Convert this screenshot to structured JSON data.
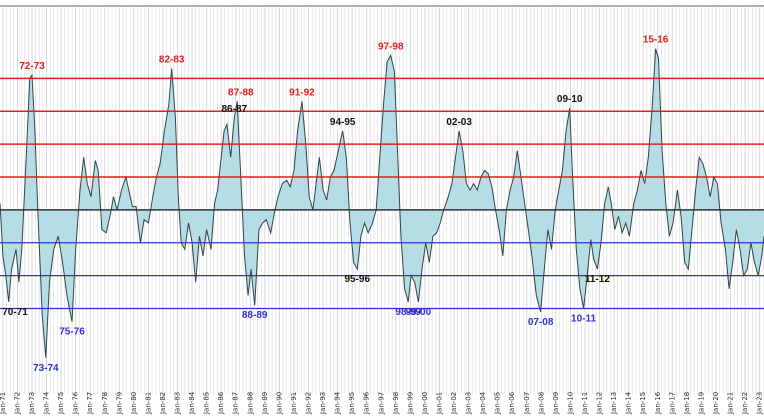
{
  "chart_data": {
    "type": "area",
    "title": "",
    "xlabel": "",
    "ylabel": "",
    "x_ticks": [
      "Jan-71",
      "Jan-72",
      "Jan-73",
      "Jan-74",
      "Jan-75",
      "Jan-76",
      "Jan-77",
      "Jan-78",
      "Jan-79",
      "Jan-80",
      "Jan-81",
      "Jan-82",
      "Jan-83",
      "Jan-84",
      "Jan-85",
      "Jan-86",
      "Jan-87",
      "Jan-88",
      "Jan-89",
      "Jan-90",
      "Jan-91",
      "Jan-92",
      "Jan-93",
      "Jan-94",
      "Jan-95",
      "Jan-96",
      "Jan-97",
      "Jan-98",
      "Jan-99",
      "Jan-00",
      "Jan-01",
      "Jan-02",
      "Jan-03",
      "Jan-04",
      "Jan-05",
      "Jan-06",
      "Jan-07",
      "Jan-08",
      "Jan-09",
      "Jan-10",
      "Jan-11",
      "Jan-12",
      "Jan-13",
      "Jan-14",
      "Jan-15",
      "Jan-16",
      "Jan-17",
      "Jan-18",
      "Jan-19",
      "Jan-20",
      "Jan-21",
      "Jan-22",
      "Jan-23"
    ],
    "xlim": [
      1970.8,
      2023.3
    ],
    "ylim": [
      -2.8,
      3.1
    ],
    "grid": "vertical",
    "baseline": 0,
    "thresholds": {
      "positive": [
        0.5,
        1.0,
        1.5,
        2.0
      ],
      "negative": [
        -0.5,
        -1.0,
        -1.5
      ],
      "positive_color": "#e0201a",
      "negative_color": "#3030d8"
    },
    "colors": {
      "fill": "#b5dde6",
      "line": "#33444a",
      "zero_line": "#333333",
      "grid": "#d4d4d4"
    },
    "series": [
      {
        "points": [
          [
            1970.8,
            0.1
          ],
          [
            1971.0,
            -0.7
          ],
          [
            1971.2,
            -1.0
          ],
          [
            1971.4,
            -1.4
          ],
          [
            1971.6,
            -0.9
          ],
          [
            1971.9,
            -0.6
          ],
          [
            1972.1,
            -1.1
          ],
          [
            1972.3,
            -0.6
          ],
          [
            1972.6,
            0.8
          ],
          [
            1972.85,
            2.0
          ],
          [
            1973.0,
            2.05
          ],
          [
            1973.2,
            1.2
          ],
          [
            1973.4,
            0.0
          ],
          [
            1973.7,
            -1.6
          ],
          [
            1973.95,
            -2.25
          ],
          [
            1974.2,
            -1.1
          ],
          [
            1974.5,
            -0.6
          ],
          [
            1974.8,
            -0.4
          ],
          [
            1975.1,
            -0.8
          ],
          [
            1975.4,
            -1.3
          ],
          [
            1975.75,
            -1.7
          ],
          [
            1976.0,
            -0.6
          ],
          [
            1976.3,
            0.3
          ],
          [
            1976.55,
            0.8
          ],
          [
            1976.8,
            0.4
          ],
          [
            1977.05,
            0.2
          ],
          [
            1977.35,
            0.75
          ],
          [
            1977.55,
            0.6
          ],
          [
            1977.8,
            -0.3
          ],
          [
            1978.1,
            -0.35
          ],
          [
            1978.4,
            -0.05
          ],
          [
            1978.6,
            0.2
          ],
          [
            1978.85,
            0.0
          ],
          [
            1979.15,
            0.3
          ],
          [
            1979.45,
            0.5
          ],
          [
            1979.65,
            0.3
          ],
          [
            1979.9,
            0.05
          ],
          [
            1980.15,
            0.05
          ],
          [
            1980.45,
            -0.5
          ],
          [
            1980.7,
            -0.15
          ],
          [
            1981.0,
            -0.2
          ],
          [
            1981.3,
            0.2
          ],
          [
            1981.55,
            0.5
          ],
          [
            1981.8,
            0.7
          ],
          [
            1982.1,
            1.2
          ],
          [
            1982.4,
            1.6
          ],
          [
            1982.6,
            2.15
          ],
          [
            1982.85,
            1.4
          ],
          [
            1983.05,
            0.2
          ],
          [
            1983.25,
            -0.5
          ],
          [
            1983.5,
            -0.6
          ],
          [
            1983.75,
            -0.2
          ],
          [
            1984.0,
            -0.5
          ],
          [
            1984.25,
            -1.1
          ],
          [
            1984.5,
            -0.4
          ],
          [
            1984.75,
            -0.7
          ],
          [
            1985.0,
            -0.3
          ],
          [
            1985.3,
            -0.6
          ],
          [
            1985.55,
            0.1
          ],
          [
            1985.75,
            0.3
          ],
          [
            1986.0,
            0.8
          ],
          [
            1986.2,
            1.2
          ],
          [
            1986.4,
            1.3
          ],
          [
            1986.65,
            0.8
          ],
          [
            1986.9,
            1.4
          ],
          [
            1987.1,
            1.65
          ],
          [
            1987.35,
            0.5
          ],
          [
            1987.6,
            -0.7
          ],
          [
            1987.85,
            -1.3
          ],
          [
            1988.05,
            -0.9
          ],
          [
            1988.3,
            -1.45
          ],
          [
            1988.6,
            -0.3
          ],
          [
            1988.85,
            -0.2
          ],
          [
            1989.1,
            -0.15
          ],
          [
            1989.4,
            -0.35
          ],
          [
            1989.7,
            0.0
          ],
          [
            1989.9,
            0.2
          ],
          [
            1990.2,
            0.4
          ],
          [
            1990.5,
            0.45
          ],
          [
            1990.75,
            0.35
          ],
          [
            1991.0,
            0.6
          ],
          [
            1991.25,
            1.2
          ],
          [
            1991.55,
            1.65
          ],
          [
            1991.85,
            0.9
          ],
          [
            1992.05,
            0.2
          ],
          [
            1992.3,
            0.0
          ],
          [
            1992.55,
            0.45
          ],
          [
            1992.75,
            0.8
          ],
          [
            1993.0,
            0.3
          ],
          [
            1993.25,
            0.15
          ],
          [
            1993.5,
            0.5
          ],
          [
            1993.75,
            0.6
          ],
          [
            1994.05,
            0.9
          ],
          [
            1994.35,
            1.2
          ],
          [
            1994.6,
            0.8
          ],
          [
            1994.85,
            -0.2
          ],
          [
            1995.1,
            -0.8
          ],
          [
            1995.35,
            -0.9
          ],
          [
            1995.6,
            -0.4
          ],
          [
            1995.85,
            -0.2
          ],
          [
            1996.1,
            -0.35
          ],
          [
            1996.4,
            -0.2
          ],
          [
            1996.65,
            0.0
          ],
          [
            1996.9,
            0.8
          ],
          [
            1997.15,
            1.6
          ],
          [
            1997.4,
            2.25
          ],
          [
            1997.65,
            2.35
          ],
          [
            1997.9,
            2.1
          ],
          [
            1998.1,
            1.0
          ],
          [
            1998.35,
            -0.4
          ],
          [
            1998.6,
            -1.2
          ],
          [
            1998.85,
            -1.4
          ],
          [
            1999.05,
            -1.0
          ],
          [
            1999.3,
            -1.1
          ],
          [
            1999.55,
            -1.4
          ],
          [
            1999.8,
            -0.9
          ],
          [
            2000.05,
            -0.5
          ],
          [
            2000.3,
            -0.8
          ],
          [
            2000.55,
            -0.4
          ],
          [
            2000.8,
            -0.35
          ],
          [
            2001.05,
            -0.2
          ],
          [
            2001.3,
            0.0
          ],
          [
            2001.6,
            0.2
          ],
          [
            2001.85,
            0.4
          ],
          [
            2002.1,
            0.8
          ],
          [
            2002.35,
            1.2
          ],
          [
            2002.6,
            0.9
          ],
          [
            2002.85,
            0.4
          ],
          [
            2003.1,
            0.3
          ],
          [
            2003.35,
            0.4
          ],
          [
            2003.6,
            0.3
          ],
          [
            2003.85,
            0.5
          ],
          [
            2004.1,
            0.6
          ],
          [
            2004.35,
            0.55
          ],
          [
            2004.6,
            0.35
          ],
          [
            2004.85,
            0.0
          ],
          [
            2005.1,
            -0.3
          ],
          [
            2005.35,
            -0.7
          ],
          [
            2005.6,
            0.0
          ],
          [
            2005.85,
            0.3
          ],
          [
            2006.1,
            0.5
          ],
          [
            2006.35,
            0.9
          ],
          [
            2006.6,
            0.5
          ],
          [
            2006.85,
            0.1
          ],
          [
            2007.1,
            -0.3
          ],
          [
            2007.35,
            -0.7
          ],
          [
            2007.65,
            -1.3
          ],
          [
            2007.95,
            -1.55
          ],
          [
            2008.2,
            -0.9
          ],
          [
            2008.45,
            -0.3
          ],
          [
            2008.7,
            -0.6
          ],
          [
            2008.95,
            0.0
          ],
          [
            2009.2,
            0.3
          ],
          [
            2009.45,
            0.6
          ],
          [
            2009.7,
            1.2
          ],
          [
            2009.95,
            1.55
          ],
          [
            2010.15,
            0.5
          ],
          [
            2010.4,
            -0.6
          ],
          [
            2010.65,
            -1.2
          ],
          [
            2010.9,
            -1.5
          ],
          [
            2011.15,
            -1.0
          ],
          [
            2011.4,
            -0.45
          ],
          [
            2011.6,
            -0.75
          ],
          [
            2011.85,
            -0.9
          ],
          [
            2012.1,
            -0.5
          ],
          [
            2012.35,
            0.1
          ],
          [
            2012.6,
            0.35
          ],
          [
            2012.8,
            0.1
          ],
          [
            2013.05,
            -0.3
          ],
          [
            2013.3,
            -0.1
          ],
          [
            2013.55,
            -0.35
          ],
          [
            2013.8,
            -0.2
          ],
          [
            2014.05,
            -0.4
          ],
          [
            2014.35,
            0.1
          ],
          [
            2014.6,
            0.3
          ],
          [
            2014.85,
            0.6
          ],
          [
            2015.1,
            0.4
          ],
          [
            2015.35,
            0.8
          ],
          [
            2015.6,
            1.5
          ],
          [
            2015.85,
            2.45
          ],
          [
            2016.05,
            2.3
          ],
          [
            2016.3,
            0.9
          ],
          [
            2016.55,
            0.1
          ],
          [
            2016.8,
            -0.4
          ],
          [
            2017.05,
            -0.2
          ],
          [
            2017.35,
            0.3
          ],
          [
            2017.6,
            -0.1
          ],
          [
            2017.85,
            -0.8
          ],
          [
            2018.1,
            -0.9
          ],
          [
            2018.35,
            -0.3
          ],
          [
            2018.6,
            0.3
          ],
          [
            2018.85,
            0.8
          ],
          [
            2019.1,
            0.7
          ],
          [
            2019.35,
            0.5
          ],
          [
            2019.6,
            0.2
          ],
          [
            2019.85,
            0.5
          ],
          [
            2020.1,
            0.4
          ],
          [
            2020.35,
            -0.2
          ],
          [
            2020.65,
            -0.6
          ],
          [
            2020.9,
            -1.2
          ],
          [
            2021.15,
            -0.8
          ],
          [
            2021.4,
            -0.3
          ],
          [
            2021.65,
            -0.6
          ],
          [
            2021.9,
            -1.0
          ],
          [
            2022.15,
            -0.9
          ],
          [
            2022.4,
            -0.5
          ],
          [
            2022.65,
            -0.8
          ],
          [
            2022.9,
            -1.0
          ],
          [
            2023.15,
            -0.7
          ],
          [
            2023.3,
            -0.4
          ]
        ]
      }
    ],
    "annotations": [
      {
        "text": "72-73",
        "x": 1973.0,
        "y": 2.05,
        "pos": "above",
        "color": "#e0201a"
      },
      {
        "text": "82-83",
        "x": 1982.6,
        "y": 2.15,
        "pos": "above",
        "color": "#e0201a"
      },
      {
        "text": "87-88",
        "x": 1987.35,
        "y": 1.65,
        "pos": "above",
        "color": "#e0201a"
      },
      {
        "text": "91-92",
        "x": 1991.55,
        "y": 1.65,
        "pos": "above",
        "color": "#e0201a"
      },
      {
        "text": "97-98",
        "x": 1997.65,
        "y": 2.35,
        "pos": "above",
        "color": "#e0201a"
      },
      {
        "text": "15-16",
        "x": 2015.85,
        "y": 2.45,
        "pos": "above",
        "color": "#e0201a"
      },
      {
        "text": "86-87",
        "x": 1986.9,
        "y": 1.4,
        "pos": "above",
        "color": "#111111"
      },
      {
        "text": "94-95",
        "x": 1994.35,
        "y": 1.2,
        "pos": "above",
        "color": "#111111"
      },
      {
        "text": "02-03",
        "x": 2002.35,
        "y": 1.2,
        "pos": "above",
        "color": "#111111"
      },
      {
        "text": "09-10",
        "x": 2009.95,
        "y": 1.55,
        "pos": "above",
        "color": "#111111"
      },
      {
        "text": "70-71",
        "x": 1971.4,
        "y": -1.4,
        "pos": "below",
        "color": "#111111"
      },
      {
        "text": "95-96",
        "x": 1995.35,
        "y": -0.9,
        "pos": "below",
        "color": "#111111"
      },
      {
        "text": "11-12",
        "x": 2011.85,
        "y": -0.9,
        "pos": "below",
        "color": "#111111"
      },
      {
        "text": "73-74",
        "x": 1973.95,
        "y": -2.25,
        "pos": "below",
        "color": "#3030d8"
      },
      {
        "text": "75-76",
        "x": 1975.75,
        "y": -1.7,
        "pos": "below",
        "color": "#3030d8"
      },
      {
        "text": "88-89",
        "x": 1988.3,
        "y": -1.45,
        "pos": "below",
        "color": "#3030d8"
      },
      {
        "text": "98-99",
        "x": 1998.85,
        "y": -1.4,
        "pos": "below",
        "color": "#3030d8"
      },
      {
        "text": "99-00",
        "x": 1999.55,
        "y": -1.4,
        "pos": "below",
        "color": "#3030d8"
      },
      {
        "text": "07-08",
        "x": 2007.95,
        "y": -1.55,
        "pos": "below",
        "color": "#3030d8"
      },
      {
        "text": "10-11",
        "x": 2010.9,
        "y": -1.5,
        "pos": "below",
        "color": "#3030d8"
      }
    ]
  }
}
